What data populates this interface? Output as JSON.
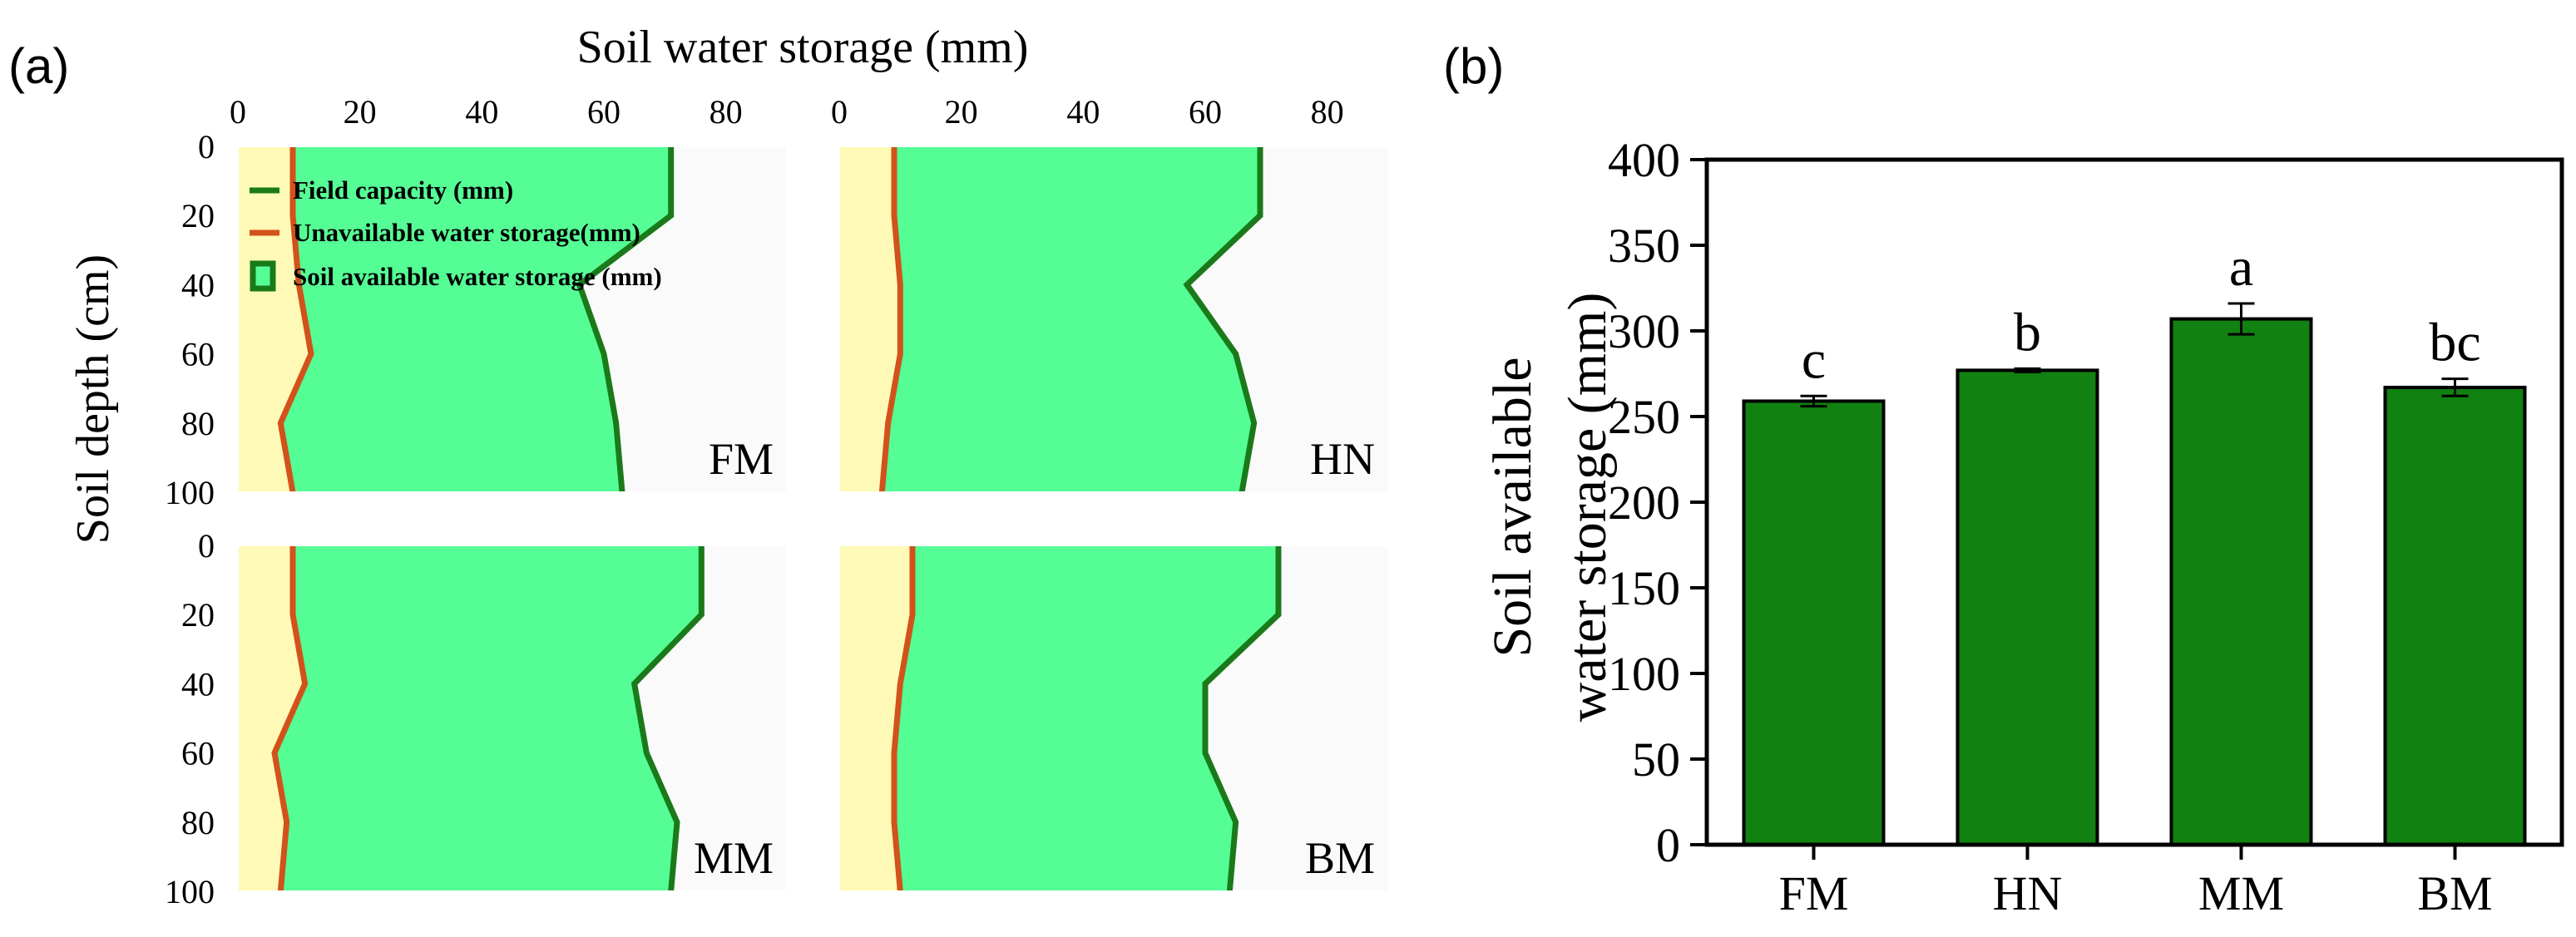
{
  "colors": {
    "field_capacity_line": "#1a7a1a",
    "unavailable_line": "#d2521b",
    "available_fill": "#55fd95",
    "unavailable_fill": "#fef9b6",
    "panel_bg": "#fafafa",
    "bar_fill": "#118111",
    "axis": "#000000"
  },
  "panel_a": {
    "label": "(a)",
    "title": "Soil water storage (mm)",
    "ylabel": "Soil depth (cm)",
    "x_ticks": [
      "0",
      "20",
      "40",
      "60",
      "80"
    ],
    "y_ticks": [
      "0",
      "20",
      "40",
      "60",
      "80",
      "100"
    ],
    "legend": {
      "field_capacity": "Field capacity (mm)",
      "unavailable": "Unavailable water storage(mm)",
      "available": "Soil available water storage (mm)"
    }
  },
  "panel_b": {
    "label": "(b)",
    "ylabel_line1": "Soil available",
    "ylabel_line2": "water storage (mm)"
  },
  "chart_data": [
    {
      "type": "area",
      "panel": "a",
      "x_range": [
        0,
        90
      ],
      "y_range": [
        0,
        100
      ],
      "y_inverted": true,
      "depth": [
        0,
        20,
        40,
        60,
        80,
        100
      ],
      "subplots": [
        {
          "name": "FM",
          "field_capacity": [
            71,
            71,
            56,
            60,
            62,
            63
          ],
          "unavailable": [
            9,
            9,
            10,
            12,
            7,
            9
          ]
        },
        {
          "name": "HN",
          "field_capacity": [
            69,
            69,
            57,
            65,
            68,
            66
          ],
          "unavailable": [
            9,
            9,
            10,
            10,
            8,
            7
          ]
        },
        {
          "name": "MM",
          "field_capacity": [
            76,
            76,
            65,
            67,
            72,
            71
          ],
          "unavailable": [
            9,
            9,
            11,
            6,
            8,
            7
          ]
        },
        {
          "name": "BM",
          "field_capacity": [
            72,
            72,
            60,
            60,
            65,
            64
          ],
          "unavailable": [
            12,
            12,
            10,
            9,
            9,
            10
          ]
        }
      ]
    },
    {
      "type": "bar",
      "panel": "b",
      "categories": [
        "FM",
        "HN",
        "MM",
        "BM"
      ],
      "values": [
        259,
        277,
        307,
        267
      ],
      "errors": [
        3,
        1,
        9,
        5
      ],
      "significance_letters": [
        "c",
        "b",
        "a",
        "bc"
      ],
      "ylabel": "Soil available water storage (mm)",
      "ylim": [
        0,
        400
      ],
      "y_ticks": [
        0,
        50,
        100,
        150,
        200,
        250,
        300,
        350,
        400
      ]
    }
  ]
}
